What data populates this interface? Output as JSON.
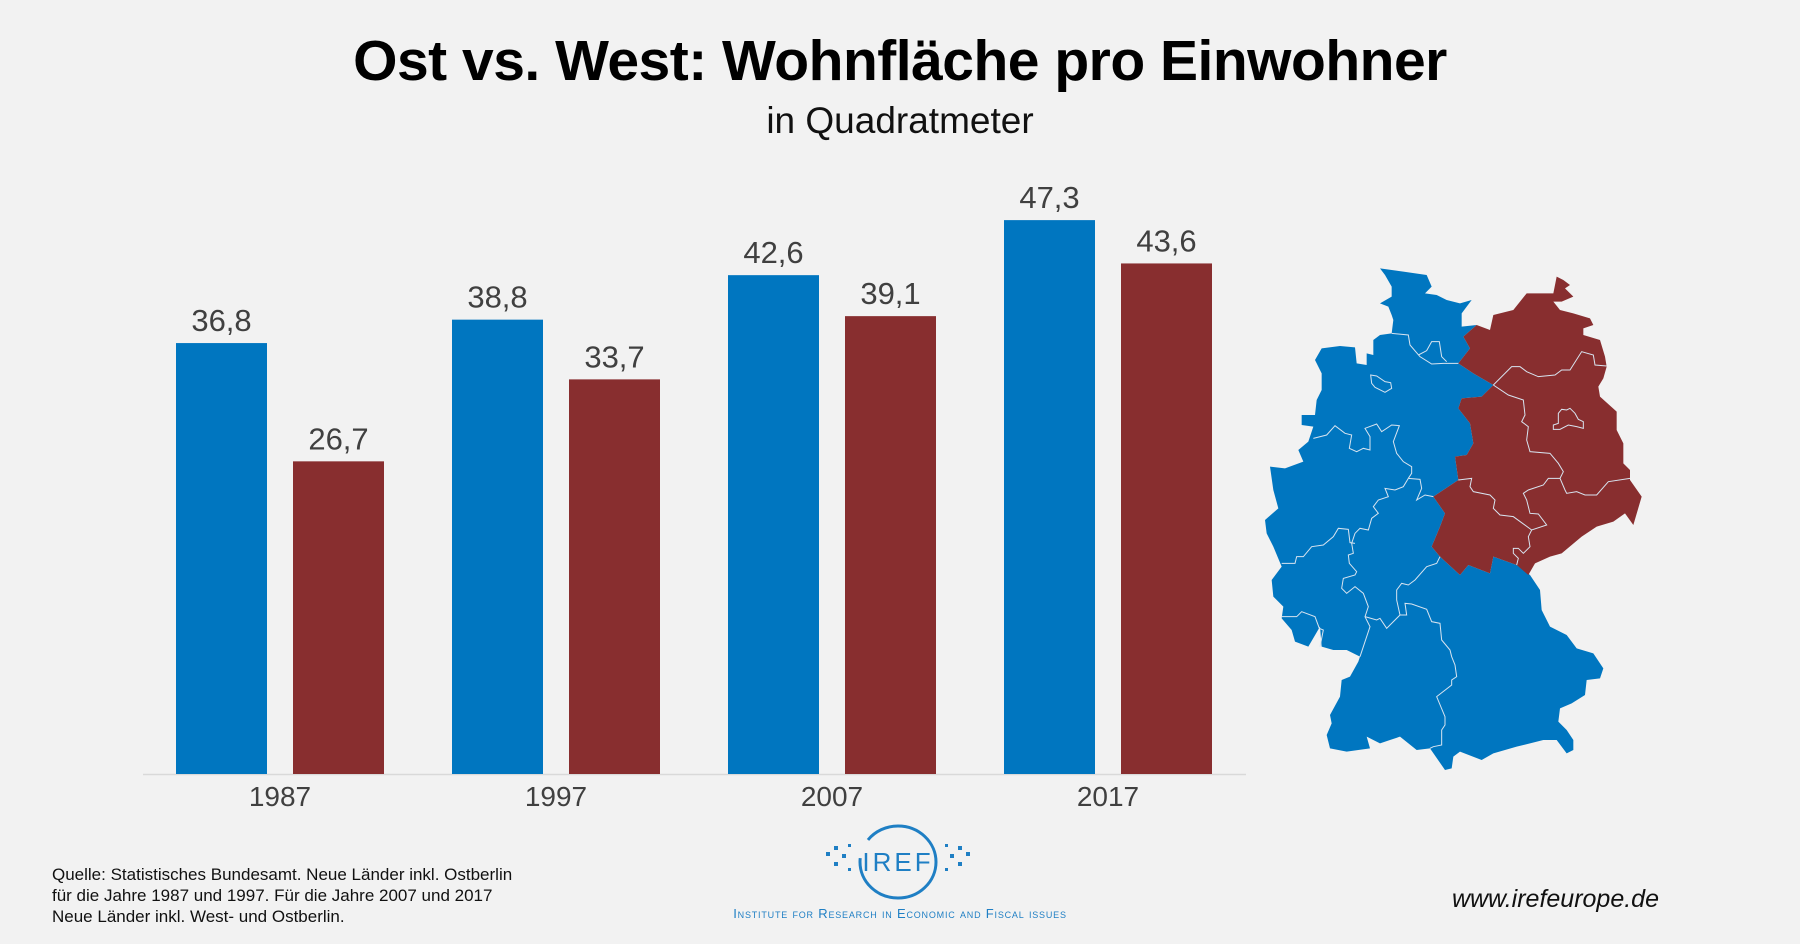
{
  "chart_data": {
    "type": "bar",
    "title": "Ost vs. West: Wohnfläche pro Einwohner",
    "subtitle": "in Quadratmeter",
    "categories": [
      "1987",
      "1997",
      "2007",
      "2017"
    ],
    "series": [
      {
        "values": [
          36.8,
          38.8,
          42.6,
          47.3
        ],
        "labels": [
          "36,8",
          "38,8",
          "42,6",
          "47,3"
        ],
        "color": "#0076c0"
      },
      {
        "values": [
          26.7,
          33.7,
          39.1,
          43.6
        ],
        "labels": [
          "26,7",
          "33,7",
          "39,1",
          "43,6"
        ],
        "color": "#882e2f"
      }
    ],
    "ylim": [
      0,
      50
    ],
    "grid": false,
    "legend": "map"
  },
  "map": {
    "west_color": "#0076c0",
    "east_color": "#882e2f",
    "border_color": "#d8e4f0"
  },
  "footer": {
    "source_lines": [
      "Quelle:  Statistisches Bundesamt. Neue Länder inkl. Ostberlin",
      "für die Jahre 1987 und 1997. Für die Jahre 2007 und 2017",
      "Neue Länder inkl. West- und Ostberlin."
    ],
    "logo_text": "IREF",
    "logo_subtitle": "Institute for Research in Economic and Fiscal issues",
    "website": "www.irefeurope.de"
  }
}
